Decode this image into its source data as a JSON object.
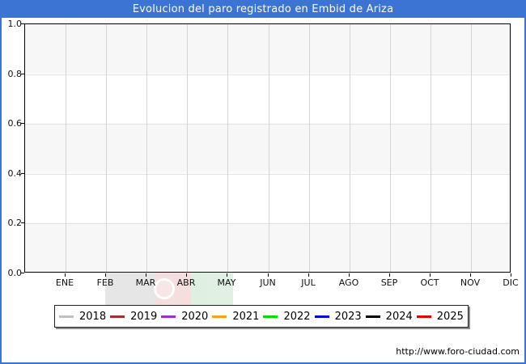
{
  "title": "Evolucion del paro registrado en Embid de Ariza",
  "footer": {
    "url": "http://www.foro-ciudad.com"
  },
  "colors": {
    "titlebar_bg": "#3b74d3",
    "frame_border": "#3b74d3",
    "band_gray": "#f7f7f7",
    "plot_border": "#000000"
  },
  "chart_data": {
    "type": "line",
    "title": "Evolucion del paro registrado en Embid de Ariza",
    "categories": [
      "ENE",
      "FEB",
      "MAR",
      "ABR",
      "MAY",
      "JUN",
      "JUL",
      "AGO",
      "SEP",
      "OCT",
      "NOV",
      "DIC"
    ],
    "xlabel": "",
    "ylabel": "",
    "ylim": [
      0.0,
      1.0
    ],
    "yticks": [
      "1.0",
      "0.8",
      "0.6",
      "0.4",
      "0.2",
      "0.0"
    ],
    "grid": true,
    "legend_position": "bottom",
    "series": [
      {
        "name": "2018",
        "color": "#c0c0c0",
        "values": []
      },
      {
        "name": "2019",
        "color": "#a03030",
        "values": []
      },
      {
        "name": "2020",
        "color": "#9b30d0",
        "values": []
      },
      {
        "name": "2021",
        "color": "#ffa018",
        "values": []
      },
      {
        "name": "2022",
        "color": "#00dd00",
        "values": []
      },
      {
        "name": "2023",
        "color": "#0000ee",
        "values": []
      },
      {
        "name": "2024",
        "color": "#000000",
        "values": []
      },
      {
        "name": "2025",
        "color": "#e00000",
        "values": []
      }
    ],
    "note": "empty plot area - no data points rendered for any series"
  }
}
